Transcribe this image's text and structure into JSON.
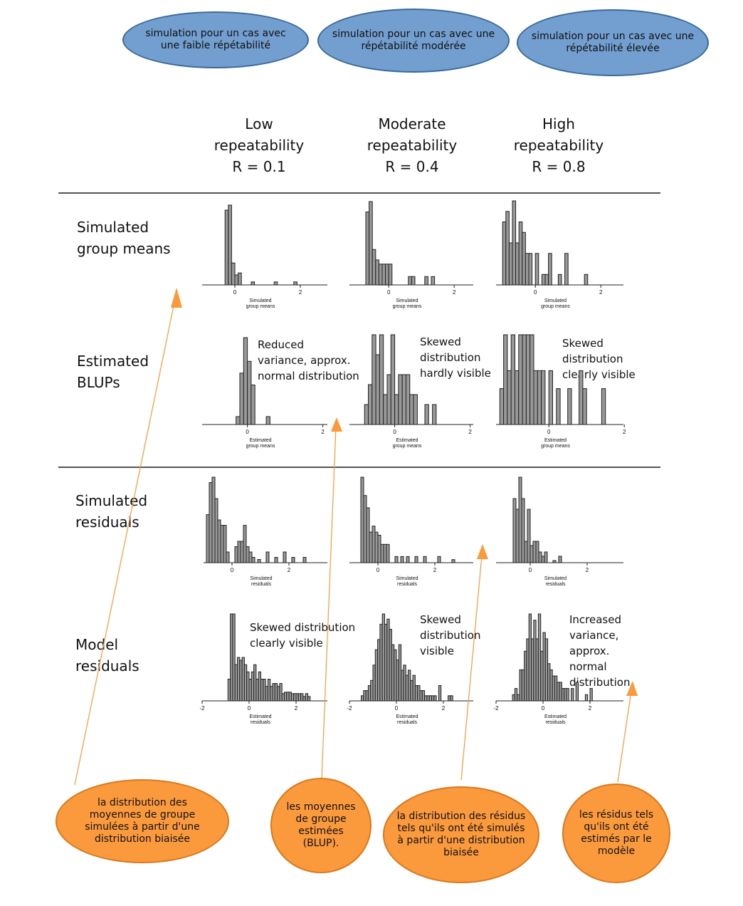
{
  "top_bubbles": [
    "simulation pour un cas avec une faible répétabilité",
    "simulation pour un cas avec une répétabilité modérée",
    "simulation pour un cas avec une répétabilité élevée"
  ],
  "columns": [
    {
      "line1": "Low",
      "line2": "repeatability",
      "line3": "R = 0.1"
    },
    {
      "line1": "Moderate",
      "line2": "repeatability",
      "line3": "R = 0.4"
    },
    {
      "line1": "High",
      "line2": "repeatability",
      "line3": "R = 0.8"
    }
  ],
  "rows": [
    {
      "line1": "Simulated",
      "line2": "group means"
    },
    {
      "line1": "Estimated",
      "line2": "BLUPs"
    },
    {
      "line1": "Simulated",
      "line2": "residuals"
    },
    {
      "line1": "Model",
      "line2": "residuals"
    }
  ],
  "annotations": {
    "blup_low": "Reduced\nvariance, approx.\nnormal distribution",
    "blup_mod": "Skewed\ndistribution\nhardly visible",
    "blup_high": "Skewed distribution\nclearly visible",
    "res_low": "Skewed distribution\nclearly visible",
    "res_mod": "Skewed\ndistribution\nvisible",
    "res_high": "Increased\nvariance, approx.\nnormal distribution"
  },
  "bottom_bubbles": [
    "la distribution des moyennes de groupe simulées à partir d'une distribution biaisée",
    "les moyennes de groupe estimées (BLUP).",
    "la distribution des résidus tels qu'ils ont été simulés à partir d'une distribution biaisée",
    "les résidus tels qu'ils ont été estimés par le modèle"
  ],
  "colors": {
    "blue_bubble": "#729fcf",
    "orange_bubble": "#fb9a3c",
    "bar_fill": "#999999"
  },
  "chart_data": [
    {
      "type": "bar",
      "panel": "simulated-group-means-low",
      "xlabel": "Simulated\ngroup means",
      "bin_width": 0.1,
      "x": [
        -0.25,
        -0.15,
        -0.05,
        0.05,
        0.15,
        0.55,
        1.25,
        1.85
      ],
      "values": [
        75,
        80,
        22,
        10,
        12,
        3,
        3,
        3
      ],
      "ticks": [
        0,
        2
      ]
    },
    {
      "type": "bar",
      "panel": "simulated-group-means-moderate",
      "xlabel": "Simulated\ngroup means",
      "bin_width": 0.1,
      "x": [
        -0.65,
        -0.55,
        -0.45,
        -0.35,
        -0.25,
        -0.15,
        -0.05,
        0.05,
        0.65,
        0.75,
        1.15,
        1.35
      ],
      "values": [
        35,
        40,
        17,
        12,
        10,
        10,
        10,
        10,
        4,
        4,
        4,
        4
      ],
      "ticks": [
        0,
        2
      ]
    },
    {
      "type": "bar",
      "panel": "simulated-group-means-high",
      "xlabel": "Simulated\ngroup means",
      "bin_width": 0.1,
      "x": [
        -0.95,
        -0.85,
        -0.75,
        -0.65,
        -0.55,
        -0.45,
        -0.35,
        -0.25,
        -0.15,
        0.05,
        0.25,
        0.35,
        0.45,
        0.75,
        0.95,
        1.55
      ],
      "values": [
        6,
        7,
        4,
        8,
        4,
        6,
        5,
        3,
        3,
        3,
        1,
        1,
        3,
        1,
        3,
        1
      ],
      "ticks": [
        0,
        2
      ]
    },
    {
      "type": "bar",
      "panel": "estimated-blups-low",
      "xlabel": "Estimated\ngroup means",
      "bin_width": 0.1,
      "x": [
        -0.25,
        -0.15,
        -0.05,
        0.05,
        0.15,
        0.55
      ],
      "values": [
        2,
        13,
        22,
        16,
        10,
        2
      ],
      "ticks": [
        0,
        2
      ]
    },
    {
      "type": "bar",
      "panel": "estimated-blups-moderate",
      "xlabel": "Estimated\ngroup means",
      "bin_width": 0.1,
      "x": [
        -0.75,
        -0.65,
        -0.55,
        -0.45,
        -0.35,
        -0.25,
        -0.15,
        -0.05,
        0.05,
        0.15,
        0.25,
        0.35,
        0.45,
        0.55,
        0.85,
        1.05
      ],
      "values": [
        2,
        4,
        9,
        7,
        9,
        3,
        5,
        9,
        3,
        5,
        5,
        5,
        3,
        3,
        2,
        2
      ],
      "ticks": [
        0,
        2
      ]
    },
    {
      "type": "bar",
      "panel": "estimated-blups-high",
      "xlabel": "Estimated\ngroup means",
      "bin_width": 0.1,
      "x": [
        -1.25,
        -1.15,
        -1.05,
        -0.95,
        -0.85,
        -0.75,
        -0.65,
        -0.55,
        -0.45,
        -0.35,
        -0.25,
        -0.15,
        0.05,
        0.25,
        0.55,
        0.85,
        0.95,
        1.45
      ],
      "values": [
        2,
        5,
        3,
        5,
        3,
        5,
        5,
        5,
        5,
        3,
        3,
        3,
        3,
        2,
        2,
        3,
        2,
        2
      ],
      "ticks": [
        0,
        2
      ]
    },
    {
      "type": "bar",
      "panel": "simulated-residuals-low",
      "xlabel": "Simulated\nresiduals",
      "bin_width": 0.1,
      "x": [
        -0.85,
        -0.75,
        -0.65,
        -0.55,
        -0.45,
        -0.35,
        -0.25,
        -0.15,
        0.15,
        0.25,
        0.35,
        0.45,
        0.55,
        0.65,
        0.75,
        0.95,
        1.25,
        1.55,
        1.85,
        2.15,
        2.55
      ],
      "values": [
        45,
        75,
        80,
        60,
        40,
        35,
        35,
        10,
        15,
        20,
        20,
        35,
        15,
        10,
        5,
        3,
        10,
        5,
        10,
        5,
        5
      ],
      "ticks": [
        0,
        2
      ]
    },
    {
      "type": "bar",
      "panel": "simulated-residuals-moderate",
      "xlabel": "Simulated\nresiduals",
      "bin_width": 0.1,
      "x": [
        -0.55,
        -0.45,
        -0.35,
        -0.25,
        -0.15,
        -0.05,
        0.05,
        0.15,
        0.25,
        0.35,
        0.65,
        0.85,
        1.05,
        1.35,
        1.65,
        2.15,
        2.65
      ],
      "values": [
        28,
        22,
        18,
        10,
        12,
        10,
        9,
        6,
        6,
        6,
        2,
        2,
        2,
        2,
        2,
        2,
        1
      ],
      "ticks": [
        0,
        2
      ]
    },
    {
      "type": "bar",
      "panel": "simulated-residuals-high",
      "xlabel": "Simulated\nresiduals",
      "bin_width": 0.1,
      "x": [
        -0.55,
        -0.45,
        -0.35,
        -0.25,
        -0.15,
        -0.05,
        0.05,
        0.15,
        0.25,
        0.35,
        0.45,
        0.55,
        0.85,
        1.05
      ],
      "values": [
        30,
        25,
        40,
        30,
        10,
        25,
        8,
        10,
        10,
        5,
        3,
        5,
        1,
        3
      ],
      "ticks": [
        0,
        2
      ]
    },
    {
      "type": "bar",
      "panel": "model-residuals-low",
      "xlabel": "Estimated\nresiduals",
      "bin_width": 0.1,
      "x": [
        -0.85,
        -0.75,
        -0.65,
        -0.55,
        -0.45,
        -0.35,
        -0.25,
        -0.15,
        -0.05,
        0.05,
        0.15,
        0.25,
        0.35,
        0.45,
        0.55,
        0.65,
        0.75,
        0.85,
        0.95,
        1.05,
        1.15,
        1.25,
        1.35,
        1.45,
        1.55,
        1.65,
        1.75,
        1.85,
        1.95,
        2.05,
        2.15,
        2.25,
        2.35,
        2.45,
        2.55
      ],
      "values": [
        15,
        60,
        60,
        25,
        30,
        28,
        30,
        25,
        20,
        15,
        20,
        25,
        15,
        20,
        15,
        15,
        10,
        15,
        10,
        12,
        12,
        10,
        12,
        5,
        6,
        6,
        6,
        5,
        5,
        5,
        5,
        5,
        3,
        5,
        3
      ],
      "ticks": [
        -2,
        0,
        2
      ]
    },
    {
      "type": "bar",
      "panel": "model-residuals-moderate",
      "xlabel": "Estimated\nresiduals",
      "bin_width": 0.1,
      "x": [
        -1.45,
        -1.35,
        -1.25,
        -1.15,
        -1.05,
        -0.95,
        -0.85,
        -0.75,
        -0.65,
        -0.55,
        -0.45,
        -0.35,
        -0.25,
        -0.15,
        -0.05,
        0.05,
        0.15,
        0.25,
        0.35,
        0.45,
        0.55,
        0.65,
        0.75,
        0.85,
        0.95,
        1.05,
        1.15,
        1.25,
        1.35,
        1.45,
        1.55,
        1.65,
        1.85,
        2.25,
        2.35
      ],
      "values": [
        1,
        2,
        2,
        3,
        4,
        7,
        10,
        12,
        15,
        17,
        15,
        16,
        14,
        11,
        10,
        8,
        11,
        6,
        7,
        5,
        6,
        4,
        5,
        3,
        3,
        2,
        2,
        1,
        1,
        1,
        1,
        1,
        3,
        1,
        1
      ],
      "ticks": [
        -2,
        0,
        2
      ]
    },
    {
      "type": "bar",
      "panel": "model-residuals-high",
      "xlabel": "Estimated\nresiduals",
      "bin_width": 0.1,
      "x": [
        -1.25,
        -1.15,
        -1.05,
        -0.95,
        -0.85,
        -0.75,
        -0.65,
        -0.55,
        -0.45,
        -0.35,
        -0.25,
        -0.15,
        -0.05,
        0.05,
        0.15,
        0.25,
        0.35,
        0.45,
        0.55,
        0.65,
        0.75,
        0.85,
        0.95,
        1.05,
        1.25,
        1.45,
        1.85,
        2.05
      ],
      "values": [
        1,
        2,
        1,
        5,
        5,
        8,
        10,
        14,
        10,
        13,
        10,
        14,
        8,
        11,
        10,
        6,
        5,
        4,
        4,
        3,
        3,
        2,
        2,
        2,
        2,
        3,
        1,
        2
      ],
      "ticks": [
        -2,
        0,
        2
      ]
    }
  ]
}
